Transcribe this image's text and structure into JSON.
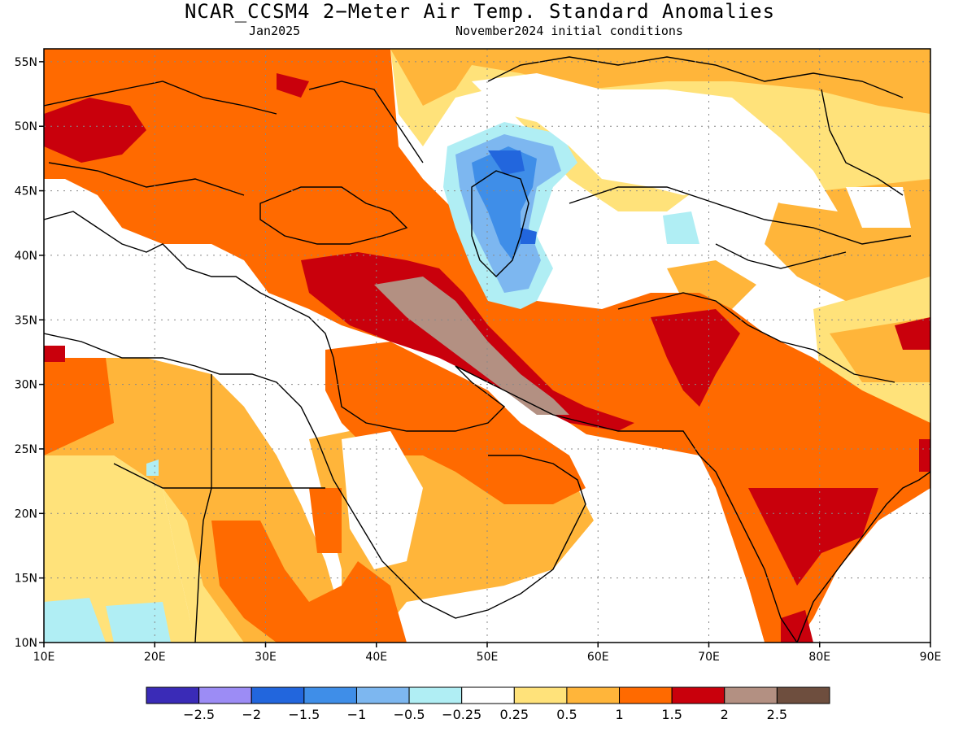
{
  "title": "NCAR_CCSM4 2−Meter Air Temp. Standard Anomalies",
  "subtitle_left": "Jan2025",
  "subtitle_right": "November2024 initial conditions",
  "map": {
    "lon_range": [
      10,
      90
    ],
    "lat_range": [
      10,
      56
    ],
    "lon_ticks": [
      "10E",
      "20E",
      "30E",
      "40E",
      "50E",
      "60E",
      "70E",
      "80E",
      "90E"
    ],
    "lat_ticks": [
      "10N",
      "15N",
      "20N",
      "25N",
      "30N",
      "35N",
      "40N",
      "45N",
      "50N",
      "55N"
    ],
    "gridlines": "dotted"
  },
  "legend": {
    "colors": [
      "#3a2bb7",
      "#9c8cf5",
      "#2266dd",
      "#3f8ee8",
      "#7db7f0",
      "#b0eef4",
      "#ffffff",
      "#ffe27a",
      "#ffb53a",
      "#ff6a00",
      "#c9000c",
      "#b39082",
      "#6e4e3e"
    ],
    "labels": [
      "−2.5",
      "−2",
      "−1.5",
      "−1",
      "−0.5",
      "−0.25",
      "0.25",
      "0.5",
      "1",
      "1.5",
      "2",
      "2.5"
    ]
  }
}
